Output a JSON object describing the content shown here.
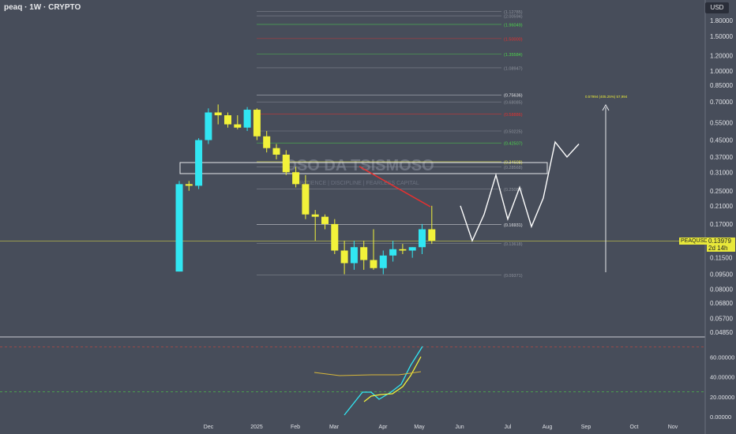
{
  "header": {
    "title": "peaq · 1W · CRYPTO",
    "currency_button": "USD"
  },
  "price_tag": {
    "symbol": "PEAQUSD",
    "price": "0.13979",
    "countdown": "2d 14h"
  },
  "watermark": {
    "name": "OSO DA TSISMOSO",
    "tagline": "PATIENCE | DISCIPLINE | FEARLESS CAPITAL"
  },
  "colors": {
    "background": "#474d5a",
    "up_candle": "#31e6f2",
    "down_candle": "#f2f23a",
    "projection": "#ffffff",
    "trend_line": "#e8302f",
    "fib_highlight_green": "#4cd44c",
    "fib_highlight_red": "#e8302f",
    "fib_highlight_yellow": "#e8e83a"
  },
  "chart_data": {
    "type": "candlestick",
    "title": "peaq · 1W · CRYPTO",
    "yaxis_ticks": [
      "1.80000",
      "1.50000",
      "1.20000",
      "1.00000",
      "0.85000",
      "0.70000",
      "0.55000",
      "0.45000",
      "0.37000",
      "0.31000",
      "0.25000",
      "0.21000",
      "0.17000",
      "0.13979",
      "0.11500",
      "0.09500",
      "0.08000",
      "0.06800",
      "0.05700",
      "0.04850"
    ],
    "xaxis_ticks": [
      "Dec",
      "2025",
      "Feb",
      "Mar",
      "Apr",
      "May",
      "Jun",
      "Jul",
      "Aug",
      "Sep",
      "Oct",
      "Nov"
    ],
    "candles": [
      {
        "o": 0.098,
        "h": 0.28,
        "l": 0.098,
        "c": 0.27
      },
      {
        "o": 0.27,
        "h": 0.28,
        "l": 0.25,
        "c": 0.265
      },
      {
        "o": 0.265,
        "h": 0.46,
        "l": 0.255,
        "c": 0.45
      },
      {
        "o": 0.45,
        "h": 0.65,
        "l": 0.43,
        "c": 0.62
      },
      {
        "o": 0.62,
        "h": 0.68,
        "l": 0.54,
        "c": 0.6
      },
      {
        "o": 0.6,
        "h": 0.62,
        "l": 0.52,
        "c": 0.54
      },
      {
        "o": 0.54,
        "h": 0.6,
        "l": 0.51,
        "c": 0.52
      },
      {
        "o": 0.52,
        "h": 0.66,
        "l": 0.5,
        "c": 0.64
      },
      {
        "o": 0.64,
        "h": 0.65,
        "l": 0.45,
        "c": 0.47
      },
      {
        "o": 0.47,
        "h": 0.5,
        "l": 0.39,
        "c": 0.41
      },
      {
        "o": 0.41,
        "h": 0.43,
        "l": 0.36,
        "c": 0.38
      },
      {
        "o": 0.38,
        "h": 0.4,
        "l": 0.3,
        "c": 0.31
      },
      {
        "o": 0.31,
        "h": 0.33,
        "l": 0.26,
        "c": 0.27
      },
      {
        "o": 0.27,
        "h": 0.3,
        "l": 0.18,
        "c": 0.19
      },
      {
        "o": 0.19,
        "h": 0.2,
        "l": 0.14,
        "c": 0.185
      },
      {
        "o": 0.185,
        "h": 0.19,
        "l": 0.16,
        "c": 0.17
      },
      {
        "o": 0.17,
        "h": 0.18,
        "l": 0.12,
        "c": 0.125
      },
      {
        "o": 0.125,
        "h": 0.14,
        "l": 0.095,
        "c": 0.108
      },
      {
        "o": 0.108,
        "h": 0.14,
        "l": 0.1,
        "c": 0.13
      },
      {
        "o": 0.13,
        "h": 0.14,
        "l": 0.1,
        "c": 0.112
      },
      {
        "o": 0.112,
        "h": 0.16,
        "l": 0.1,
        "c": 0.102
      },
      {
        "o": 0.102,
        "h": 0.125,
        "l": 0.095,
        "c": 0.118
      },
      {
        "o": 0.118,
        "h": 0.14,
        "l": 0.11,
        "c": 0.127
      },
      {
        "o": 0.127,
        "h": 0.135,
        "l": 0.12,
        "c": 0.125
      },
      {
        "o": 0.125,
        "h": 0.13,
        "l": 0.115,
        "c": 0.13
      },
      {
        "o": 0.13,
        "h": 0.17,
        "l": 0.12,
        "c": 0.16
      },
      {
        "o": 0.16,
        "h": 0.21,
        "l": 0.135,
        "c": 0.14
      }
    ],
    "fib_levels": [
      {
        "label": "(1.12785)",
        "value": 2.0
      },
      {
        "label": "(2.00594)",
        "value": 1.9
      },
      {
        "label": "(1.96049)",
        "value": 1.72
      },
      {
        "label": "(1.50000)",
        "value": 1.46
      },
      {
        "label": "(1.35584)",
        "value": 1.22
      },
      {
        "label": "(1.08947)",
        "value": 1.04
      },
      {
        "label": "(0.75636)",
        "value": 0.76
      },
      {
        "label": "(0.68085)",
        "value": 0.7
      },
      {
        "label": "(0.58886)",
        "value": 0.61
      },
      {
        "label": "(0.50225)",
        "value": 0.5
      },
      {
        "label": "(0.42507)",
        "value": 0.435
      },
      {
        "label": "(0.34608)",
        "value": 0.35
      },
      {
        "label": "(0.28568)",
        "value": 0.33
      },
      {
        "label": "(0.25080)",
        "value": 0.255
      },
      {
        "label": "(0.16931)",
        "value": 0.169
      },
      {
        "label": "(0.13618)",
        "value": 0.136
      },
      {
        "label": "(0.09371)",
        "value": 0.094
      }
    ],
    "projection": [
      0.21,
      0.14,
      0.19,
      0.3,
      0.18,
      0.26,
      0.165,
      0.23,
      0.44,
      0.37,
      0.43
    ],
    "target_label": "0.57994 (405.25%) 57,994",
    "oscillator": {
      "yaxis_ticks": [
        "60.00000",
        "40.00000",
        "20.00000",
        "0.00000"
      ],
      "levels": [
        70,
        25
      ]
    }
  }
}
